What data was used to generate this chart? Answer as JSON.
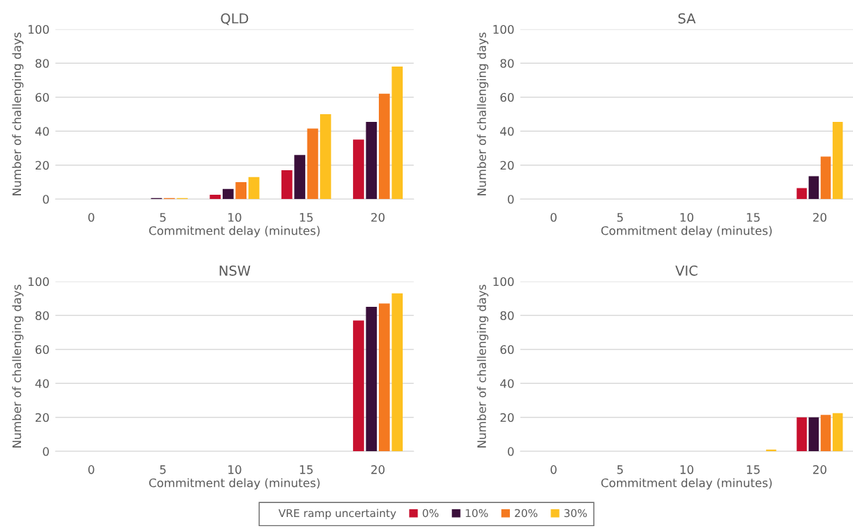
{
  "chart_data": [
    {
      "type": "bar",
      "title": "QLD",
      "xlabel": "Commitment delay (minutes)",
      "ylabel": "Number of challenging days",
      "categories": [
        "0",
        "5",
        "10",
        "15",
        "20"
      ],
      "ylim": [
        0,
        100
      ],
      "yticks": [
        0,
        20,
        40,
        60,
        80,
        100
      ],
      "grid": "y",
      "legend": "bottom",
      "legend_title": "VRE ramp uncertainty",
      "series": [
        {
          "name": "0%",
          "color": "#c8102e",
          "values": [
            0,
            0,
            2.6,
            17,
            35
          ]
        },
        {
          "name": "10%",
          "color": "#3a0f3a",
          "values": [
            0,
            0.6,
            6,
            26,
            45.5
          ]
        },
        {
          "name": "20%",
          "color": "#f47920",
          "values": [
            0,
            0.6,
            10,
            41.5,
            62
          ]
        },
        {
          "name": "30%",
          "color": "#fdc020",
          "values": [
            0,
            0.6,
            13,
            50,
            78
          ]
        }
      ]
    },
    {
      "type": "bar",
      "title": "SA",
      "xlabel": "Commitment delay (minutes)",
      "ylabel": "Number of challenging days",
      "categories": [
        "0",
        "5",
        "10",
        "15",
        "20"
      ],
      "ylim": [
        0,
        100
      ],
      "yticks": [
        0,
        20,
        40,
        60,
        80,
        100
      ],
      "grid": "y",
      "series": [
        {
          "color": "#c8102e",
          "values": [
            0,
            0,
            0,
            0,
            6.5
          ]
        },
        {
          "color": "#3a0f3a",
          "values": [
            0,
            0,
            0,
            0,
            13.5
          ]
        },
        {
          "color": "#f47920",
          "values": [
            0,
            0,
            0,
            0,
            25
          ]
        },
        {
          "color": "#fdc020",
          "values": [
            0,
            0,
            0,
            0,
            45.5
          ]
        }
      ]
    },
    {
      "type": "bar",
      "title": "NSW",
      "xlabel": "Commitment delay (minutes)",
      "ylabel": "Number of challenging days",
      "categories": [
        "0",
        "5",
        "10",
        "15",
        "20"
      ],
      "ylim": [
        0,
        100
      ],
      "yticks": [
        0,
        20,
        40,
        60,
        80,
        100
      ],
      "grid": "y",
      "series": [
        {
          "color": "#c8102e",
          "values": [
            0,
            0,
            0,
            0,
            77
          ]
        },
        {
          "color": "#3a0f3a",
          "values": [
            0,
            0,
            0,
            0,
            85
          ]
        },
        {
          "color": "#f47920",
          "values": [
            0,
            0,
            0,
            0,
            87
          ]
        },
        {
          "color": "#fdc020",
          "values": [
            0,
            0,
            0,
            0,
            93
          ]
        }
      ]
    },
    {
      "type": "bar",
      "title": "VIC",
      "xlabel": "Commitment delay (minutes)",
      "ylabel": "Number of challenging days",
      "categories": [
        "0",
        "5",
        "10",
        "15",
        "20"
      ],
      "ylim": [
        0,
        100
      ],
      "yticks": [
        0,
        20,
        40,
        60,
        80,
        100
      ],
      "grid": "y",
      "series": [
        {
          "color": "#c8102e",
          "values": [
            0,
            0,
            0,
            0,
            20
          ]
        },
        {
          "color": "#3a0f3a",
          "values": [
            0,
            0,
            0,
            0,
            20
          ]
        },
        {
          "color": "#f47920",
          "values": [
            0,
            0,
            0,
            0,
            21.5
          ]
        },
        {
          "color": "#fdc020",
          "values": [
            0,
            0,
            0,
            1,
            22.5
          ]
        }
      ]
    }
  ]
}
